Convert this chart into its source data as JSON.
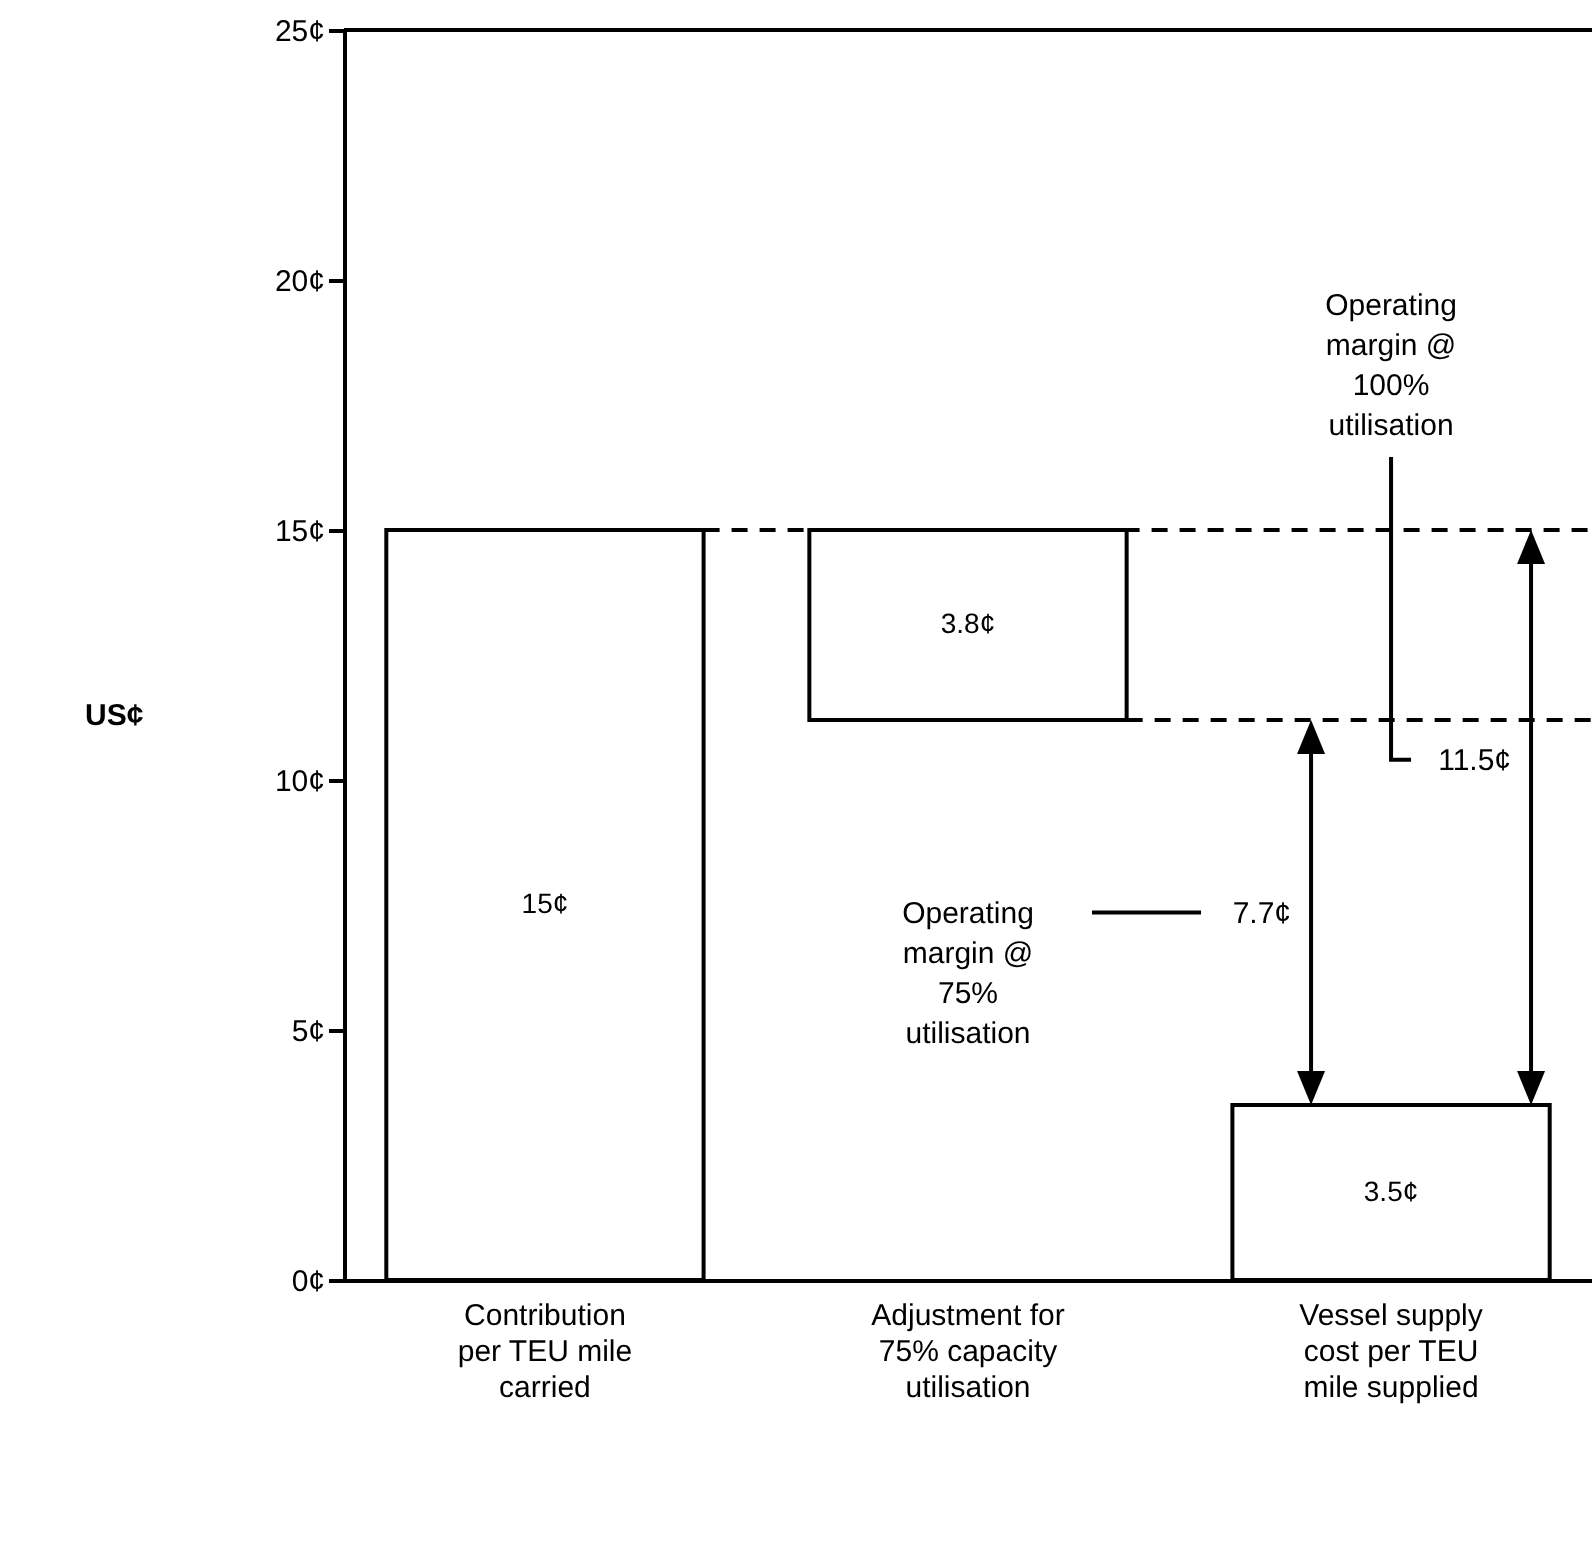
{
  "chart_data": {
    "type": "bar",
    "ylabel": "US¢",
    "categories": [
      "Contribution per TEU mile carried",
      "Adjustment for 75% capacity utilisation",
      "Vessel supply cost per TEU mile supplied"
    ],
    "values": [
      15,
      3.8,
      3.5
    ],
    "base": [
      0,
      11.2,
      0
    ],
    "color": "#ffffff",
    "value_labels": [
      "15¢",
      "3.8¢",
      "3.5¢"
    ],
    "ylim": [
      0,
      25
    ],
    "yticks": [
      {
        "value": 0,
        "label": "0¢"
      },
      {
        "value": 5,
        "label": "5¢"
      },
      {
        "value": 10,
        "label": "10¢"
      },
      {
        "value": 15,
        "label": "15¢"
      },
      {
        "value": 20,
        "label": "20¢"
      },
      {
        "value": 25,
        "label": "25¢"
      }
    ],
    "ref_lines": [
      {
        "axis": "y",
        "value": 15,
        "line_style": "dashed",
        "color": "#000000"
      },
      {
        "axis": "y",
        "value": 11.2,
        "line_style": "dashed",
        "color": "#000000"
      }
    ],
    "annotations": [
      "Operating margin @ 75% utilisation",
      "7.7¢",
      "Operating margin @ 100% utilisation",
      "11.5¢"
    ]
  }
}
